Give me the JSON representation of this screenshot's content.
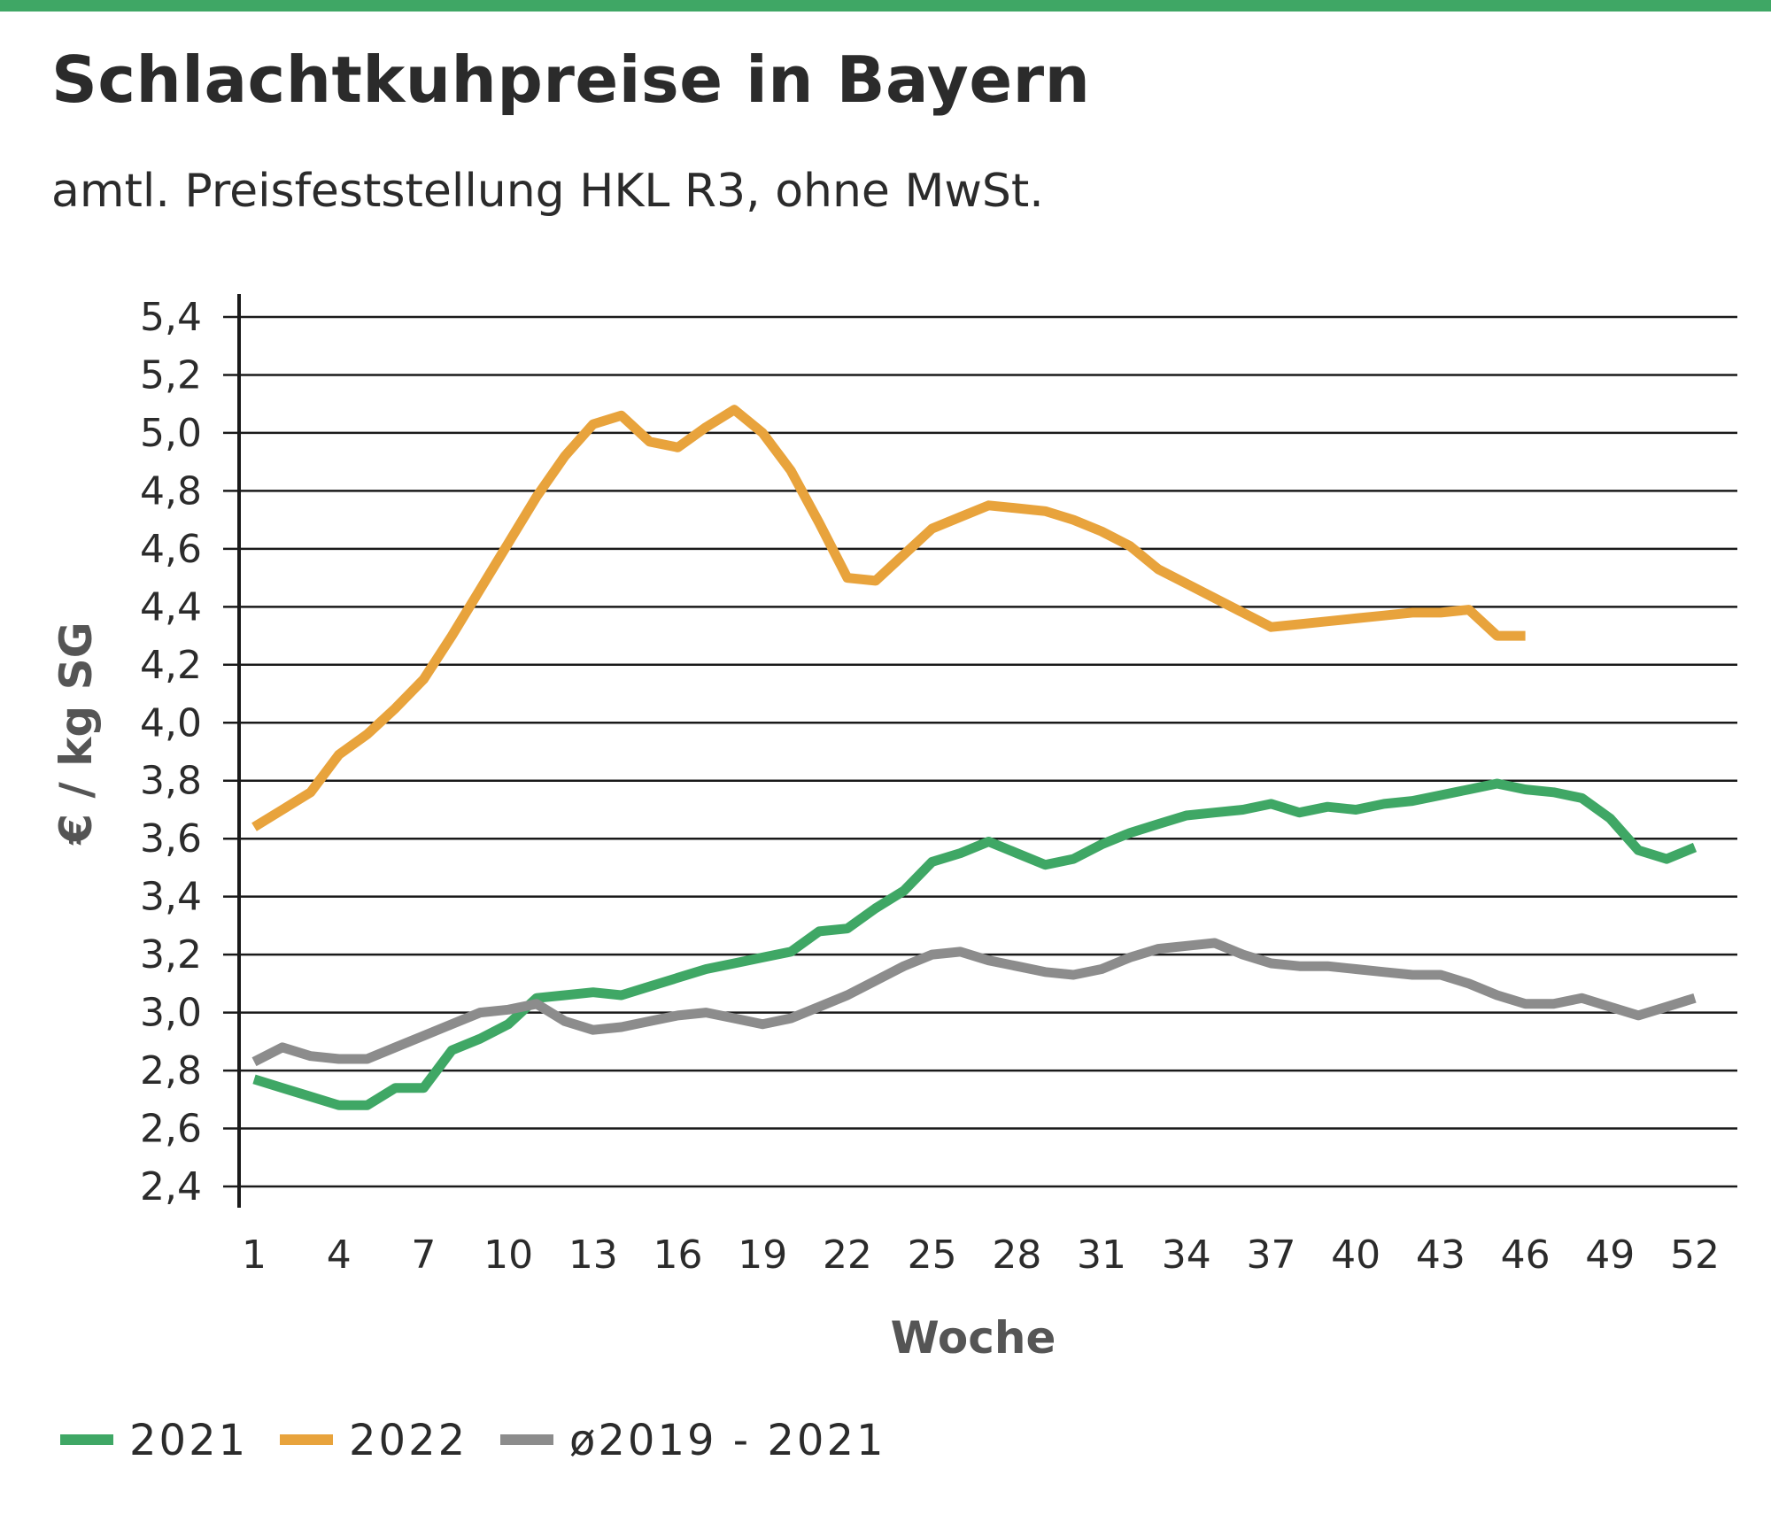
{
  "title": "Schlachtkuhpreise in Bayern",
  "subtitle": "amtl. Preisfeststellung HKL R3, ohne MwSt.",
  "colors": {
    "top_bar": "#3fa765",
    "grid": "#1a1a1a",
    "text": "#2b2b2b",
    "axis_title": "#555555"
  },
  "chart_data": {
    "type": "line",
    "xlabel": "Woche",
    "ylabel": "€ / kg SG",
    "xlim": [
      1,
      52
    ],
    "ylim": [
      2.4,
      5.4
    ],
    "x_ticks": [
      1,
      4,
      7,
      10,
      13,
      16,
      19,
      22,
      25,
      28,
      31,
      34,
      37,
      40,
      43,
      46,
      49,
      52
    ],
    "y_ticks": [
      "2,4",
      "2,6",
      "2,8",
      "3,0",
      "3,2",
      "3,4",
      "3,6",
      "3,8",
      "4,0",
      "4,2",
      "4,4",
      "4,6",
      "4,8",
      "5,0",
      "5,2",
      "5,4"
    ],
    "y_tick_values": [
      2.4,
      2.6,
      2.8,
      3.0,
      3.2,
      3.4,
      3.6,
      3.8,
      4.0,
      4.2,
      4.4,
      4.6,
      4.8,
      5.0,
      5.2,
      5.4
    ],
    "grid": "horizontal",
    "legend_position": "bottom",
    "series": [
      {
        "name": "2021",
        "color": "#3fa765",
        "x": [
          1,
          2,
          3,
          4,
          5,
          6,
          7,
          8,
          9,
          10,
          11,
          12,
          13,
          14,
          15,
          16,
          17,
          18,
          19,
          20,
          21,
          22,
          23,
          24,
          25,
          26,
          27,
          28,
          29,
          30,
          31,
          32,
          33,
          34,
          35,
          36,
          37,
          38,
          39,
          40,
          41,
          42,
          43,
          44,
          45,
          46,
          47,
          48,
          49,
          50,
          51,
          52
        ],
        "values": [
          2.77,
          2.74,
          2.71,
          2.68,
          2.68,
          2.74,
          2.74,
          2.87,
          2.91,
          2.96,
          3.05,
          3.06,
          3.07,
          3.06,
          3.09,
          3.12,
          3.15,
          3.17,
          3.19,
          3.21,
          3.28,
          3.29,
          3.36,
          3.42,
          3.52,
          3.55,
          3.59,
          3.55,
          3.51,
          3.53,
          3.58,
          3.62,
          3.65,
          3.68,
          3.69,
          3.7,
          3.72,
          3.69,
          3.71,
          3.7,
          3.72,
          3.73,
          3.75,
          3.77,
          3.79,
          3.77,
          3.76,
          3.74,
          3.67,
          3.56,
          3.53,
          3.57
        ]
      },
      {
        "name": "2022",
        "color": "#e8a33c",
        "x": [
          1,
          2,
          3,
          4,
          5,
          6,
          7,
          8,
          9,
          10,
          11,
          12,
          13,
          14,
          15,
          16,
          17,
          18,
          19,
          20,
          21,
          22,
          23,
          24,
          25,
          26,
          27,
          28,
          29,
          30,
          31,
          32,
          33,
          34,
          35,
          36,
          37,
          38,
          39,
          40,
          41,
          42,
          43,
          44,
          45,
          46
        ],
        "values": [
          3.64,
          3.7,
          3.76,
          3.89,
          3.96,
          4.05,
          4.15,
          4.3,
          4.46,
          4.62,
          4.78,
          4.92,
          5.03,
          5.06,
          4.97,
          4.95,
          5.02,
          5.08,
          5.0,
          4.87,
          4.69,
          4.5,
          4.49,
          4.58,
          4.67,
          4.71,
          4.75,
          4.74,
          4.73,
          4.7,
          4.66,
          4.61,
          4.53,
          4.48,
          4.43,
          4.38,
          4.33,
          4.34,
          4.35,
          4.36,
          4.37,
          4.38,
          4.38,
          4.39,
          4.3,
          4.3
        ]
      },
      {
        "name": "ø2019 - 2021",
        "color": "#8c8c8c",
        "x": [
          1,
          2,
          3,
          4,
          5,
          6,
          7,
          8,
          9,
          10,
          11,
          12,
          13,
          14,
          15,
          16,
          17,
          18,
          19,
          20,
          21,
          22,
          23,
          24,
          25,
          26,
          27,
          28,
          29,
          30,
          31,
          32,
          33,
          34,
          35,
          36,
          37,
          38,
          39,
          40,
          41,
          42,
          43,
          44,
          45,
          46,
          47,
          48,
          49,
          50,
          51,
          52
        ],
        "values": [
          2.83,
          2.88,
          2.85,
          2.84,
          2.84,
          2.88,
          2.92,
          2.96,
          3.0,
          3.01,
          3.03,
          2.97,
          2.94,
          2.95,
          2.97,
          2.99,
          3.0,
          2.98,
          2.96,
          2.98,
          3.02,
          3.06,
          3.11,
          3.16,
          3.2,
          3.21,
          3.18,
          3.16,
          3.14,
          3.13,
          3.15,
          3.19,
          3.22,
          3.23,
          3.24,
          3.2,
          3.17,
          3.16,
          3.16,
          3.15,
          3.14,
          3.13,
          3.13,
          3.1,
          3.06,
          3.03,
          3.03,
          3.05,
          3.02,
          2.99,
          3.02,
          3.05
        ]
      }
    ]
  }
}
